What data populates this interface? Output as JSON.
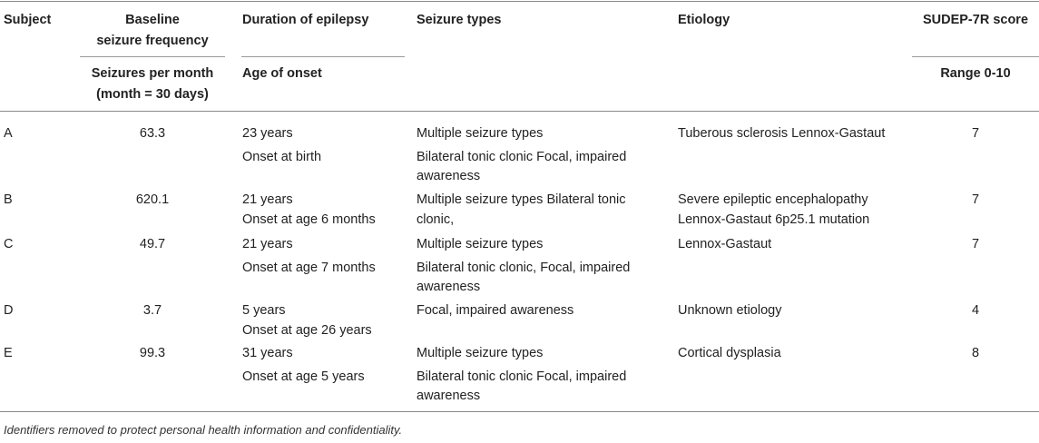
{
  "table": {
    "headers": {
      "subject": "Subject",
      "baseline_l1": "Baseline",
      "baseline_l2": "seizure frequency",
      "baseline_sub_l1": "Seizures per month",
      "baseline_sub_l2": "(month = 30 days)",
      "duration": "Duration of epilepsy",
      "duration_sub": "Age of onset",
      "seizure_types": "Seizure types",
      "etiology": "Etiology",
      "sudep": "SUDEP-7R score",
      "sudep_sub": "Range 0-10"
    },
    "rows": [
      {
        "subject": "A",
        "frequency": "63.3",
        "duration": "23 years",
        "onset": "Onset at birth",
        "types_l1": "Multiple seizure types",
        "types_l2": "Bilateral tonic clonic Focal, impaired",
        "types_l3": "awareness",
        "etiology_l1": "Tuberous sclerosis Lennox-Gastaut",
        "etiology_l2": "",
        "score": "7"
      },
      {
        "subject": "B",
        "frequency": "620.1",
        "duration": "21 years",
        "onset": "Onset at age 6 months",
        "types_l1": "Multiple seizure types Bilateral tonic",
        "types_l2": "clonic,",
        "types_l3": "",
        "etiology_l1": "Severe epileptic encephalopathy",
        "etiology_l2": "Lennox-Gastaut 6p25.1 mutation",
        "score": "7"
      },
      {
        "subject": "C",
        "frequency": "49.7",
        "duration": "21 years",
        "onset": "Onset at age 7 months",
        "types_l1": "Multiple seizure types",
        "types_l2": "Bilateral tonic clonic, Focal, impaired",
        "types_l3": "awareness",
        "etiology_l1": "Lennox-Gastaut",
        "etiology_l2": "",
        "score": "7"
      },
      {
        "subject": "D",
        "frequency": "3.7",
        "duration": "5 years",
        "onset": "Onset at age 26 years",
        "types_l1": "Focal, impaired awareness",
        "types_l2": "",
        "types_l3": "",
        "etiology_l1": "Unknown etiology",
        "etiology_l2": "",
        "score": "4"
      },
      {
        "subject": "E",
        "frequency": "99.3",
        "duration": "31 years",
        "onset": "Onset at age 5 years",
        "types_l1": "Multiple seizure types",
        "types_l2": "Bilateral tonic clonic Focal, impaired",
        "types_l3": "awareness",
        "etiology_l1": "Cortical dysplasia",
        "etiology_l2": "",
        "score": "8"
      }
    ]
  },
  "footnote": "Identifiers removed to protect personal health information and confidentiality."
}
